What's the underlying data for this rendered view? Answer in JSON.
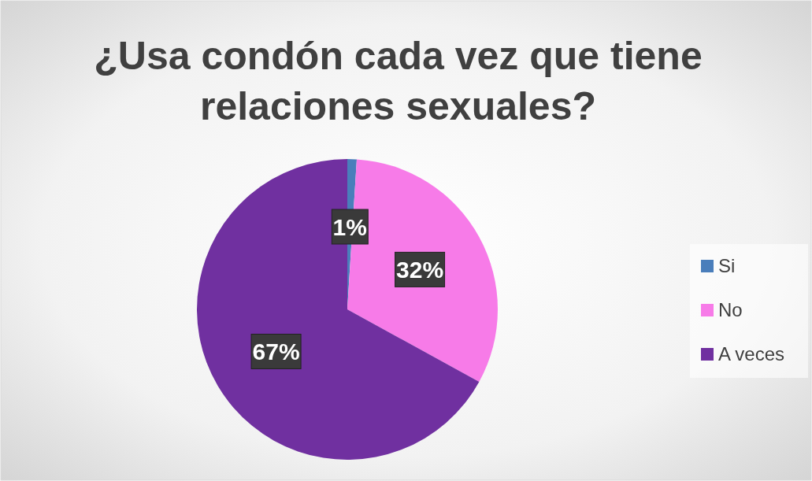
{
  "chart_data": {
    "type": "pie",
    "title": "¿Usa condón cada vez que tiene relaciones sexuales?",
    "categories": [
      "Si",
      "No",
      "A veces"
    ],
    "values": [
      1,
      32,
      67
    ],
    "colors": [
      "#4a7ebb",
      "#f77be8",
      "#7030a0"
    ],
    "value_labels": [
      "1%",
      "32%",
      "67%"
    ],
    "legend": "right"
  }
}
